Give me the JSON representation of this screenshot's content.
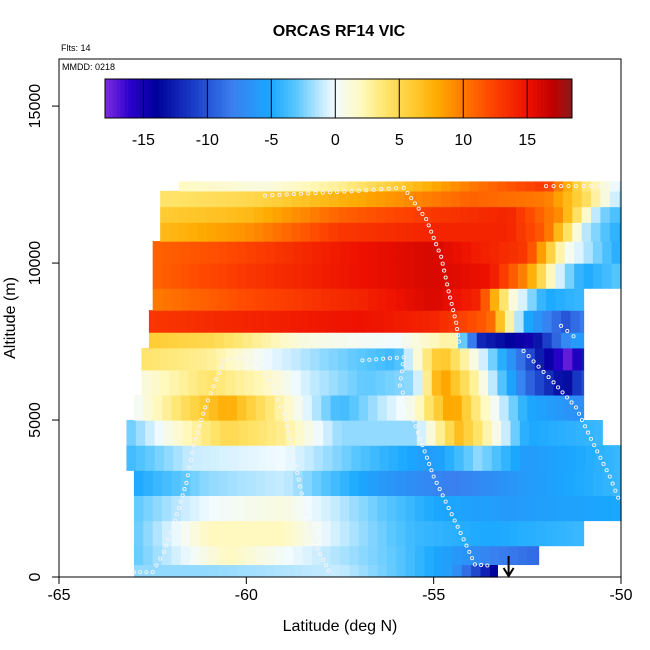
{
  "chart_data": {
    "type": "heatmap",
    "title": "ORCAS RF14 VIC",
    "subtitle_flights": "Flts: 14",
    "subtitle_date": "MMDD: 0218",
    "xlabel": "Latitude (deg N)",
    "ylabel": "Altitude (m)",
    "xlim": [
      -65,
      -50
    ],
    "ylim": [
      0,
      16500
    ],
    "x_ticks": [
      -65,
      -60,
      -55,
      -50
    ],
    "y_ticks": [
      0,
      5000,
      10000,
      15000
    ],
    "x_tick_labels": [
      "-65",
      "-60",
      "-55",
      "-50"
    ],
    "y_tick_labels": [
      "0",
      "5000",
      "10000",
      "15000"
    ],
    "colorbar": {
      "range": [
        -18,
        18.5
      ],
      "ticks": [
        -15,
        -10,
        -5,
        0,
        5,
        10,
        15
      ],
      "tick_labels": [
        "-15",
        "-10",
        "-5",
        "0",
        "5",
        "10",
        "15"
      ],
      "stops": [
        {
          "v": -18,
          "c": "#7f2be0"
        },
        {
          "v": -16,
          "c": "#2a00cc"
        },
        {
          "v": -14,
          "c": "#00009a"
        },
        {
          "v": -11,
          "c": "#1b3fc8"
        },
        {
          "v": -8,
          "c": "#3a7ff0"
        },
        {
          "v": -5,
          "c": "#1aa8ff"
        },
        {
          "v": -3,
          "c": "#5cc8ff"
        },
        {
          "v": -1,
          "c": "#c8ecff"
        },
        {
          "v": 0,
          "c": "#f2fbff"
        },
        {
          "v": 2,
          "c": "#fff9c0"
        },
        {
          "v": 4,
          "c": "#ffe46a"
        },
        {
          "v": 6,
          "c": "#ffcc33"
        },
        {
          "v": 8,
          "c": "#ffaa00"
        },
        {
          "v": 10,
          "c": "#ff7a00"
        },
        {
          "v": 12,
          "c": "#ff4a00"
        },
        {
          "v": 15,
          "c": "#ee1100"
        },
        {
          "v": 17,
          "c": "#c00000"
        },
        {
          "v": 18.5,
          "c": "#8c1a1a"
        }
      ]
    },
    "grid": false,
    "annotation_arrow_lat": -53.0,
    "layers": [
      {
        "y0": 0,
        "y1": 400,
        "x0": -63.0,
        "x1": -53.3,
        "anchors": [
          [
            -63,
            -2
          ],
          [
            -61,
            -2
          ],
          [
            -57.5,
            -1
          ],
          [
            -56,
            -3
          ],
          [
            -54.5,
            -6
          ],
          [
            -53.4,
            -14
          ]
        ]
      },
      {
        "y0": 400,
        "y1": 1000,
        "x0": -63.0,
        "x1": -52.2,
        "anchors": [
          [
            -63,
            -3
          ],
          [
            -60.5,
            2
          ],
          [
            -58,
            -1
          ],
          [
            -56,
            -3
          ],
          [
            -54.5,
            -6
          ],
          [
            -53.3,
            -8
          ],
          [
            -52.2,
            -9
          ]
        ]
      },
      {
        "y0": 1000,
        "y1": 1800,
        "x0": -63.0,
        "x1": -51.0,
        "anchors": [
          [
            -63,
            -3
          ],
          [
            -61,
            2
          ],
          [
            -59,
            2
          ],
          [
            -57.5,
            -1
          ],
          [
            -55.5,
            -4
          ],
          [
            -53.5,
            -5
          ],
          [
            -51,
            -4
          ]
        ]
      },
      {
        "y0": 1800,
        "y1": 2600,
        "x0": -63.0,
        "x1": -50.0,
        "anchors": [
          [
            -63,
            -3
          ],
          [
            -61,
            0
          ],
          [
            -59,
            1
          ],
          [
            -57,
            -2
          ],
          [
            -55,
            -5
          ],
          [
            -53,
            -6
          ],
          [
            -50,
            -5
          ]
        ]
      },
      {
        "y0": 2600,
        "y1": 3400,
        "x0": -63.0,
        "x1": -50.0,
        "anchors": [
          [
            -63,
            -5
          ],
          [
            -61,
            -2
          ],
          [
            -59,
            -1
          ],
          [
            -56.5,
            -6
          ],
          [
            -54.5,
            -8
          ],
          [
            -52.5,
            -6
          ],
          [
            -50,
            -4
          ]
        ]
      },
      {
        "y0": 3400,
        "y1": 4200,
        "x0": -63.2,
        "x1": -50.0,
        "anchors": [
          [
            -63.2,
            -4
          ],
          [
            -61.5,
            -1
          ],
          [
            -59,
            0
          ],
          [
            -56.5,
            -4
          ],
          [
            -55,
            -6
          ],
          [
            -53.8,
            -2
          ],
          [
            -52.5,
            -6
          ],
          [
            -50,
            -4
          ]
        ]
      },
      {
        "y0": 4200,
        "y1": 5000,
        "x0": -63.2,
        "x1": -50.5,
        "anchors": [
          [
            -63.2,
            -3
          ],
          [
            -62,
            1
          ],
          [
            -60.5,
            5
          ],
          [
            -59,
            3
          ],
          [
            -57.5,
            -2
          ],
          [
            -55.5,
            -2
          ],
          [
            -54.3,
            7
          ],
          [
            -53.5,
            2
          ],
          [
            -52.5,
            -5
          ],
          [
            -50.5,
            -4
          ]
        ]
      },
      {
        "y0": 5000,
        "y1": 5800,
        "x0": -63.0,
        "x1": -51.0,
        "anchors": [
          [
            -63,
            0
          ],
          [
            -61.5,
            5
          ],
          [
            -60.5,
            8
          ],
          [
            -59.2,
            3
          ],
          [
            -57.5,
            -4
          ],
          [
            -55.5,
            1
          ],
          [
            -54.5,
            9
          ],
          [
            -53.8,
            3
          ],
          [
            -52.5,
            -5
          ],
          [
            -51,
            -7
          ]
        ]
      },
      {
        "y0": 5800,
        "y1": 6600,
        "x0": -62.8,
        "x1": -51.0,
        "anchors": [
          [
            -62.8,
            1
          ],
          [
            -61,
            4
          ],
          [
            -59.5,
            2
          ],
          [
            -58.3,
            -1
          ],
          [
            -56.8,
            -3
          ],
          [
            -55.5,
            -2
          ],
          [
            -54.8,
            9
          ],
          [
            -53.8,
            2
          ],
          [
            -52.5,
            -9
          ],
          [
            -51.5,
            -14
          ],
          [
            -51,
            -10
          ]
        ]
      },
      {
        "y0": 6600,
        "y1": 7300,
        "x0": -62.8,
        "x1": -51.0,
        "anchors": [
          [
            -62.8,
            4
          ],
          [
            -61,
            3
          ],
          [
            -59.5,
            0
          ],
          [
            -58,
            -2
          ],
          [
            -56,
            -4
          ],
          [
            -54.8,
            7
          ],
          [
            -53.5,
            -2
          ],
          [
            -52,
            -14
          ],
          [
            -51.3,
            -18
          ],
          [
            -51,
            -12
          ]
        ]
      },
      {
        "y0": 7300,
        "y1": 7800,
        "x0": -62.6,
        "x1": -51.0,
        "anchors": [
          [
            -62.6,
            6
          ],
          [
            -61,
            5
          ],
          [
            -58.5,
            1
          ],
          [
            -56,
            0
          ],
          [
            -54.5,
            3
          ],
          [
            -53.8,
            -12
          ],
          [
            -52.5,
            -15
          ],
          [
            -51.3,
            -6
          ]
        ]
      },
      {
        "y0": 7800,
        "y1": 8500,
        "x0": -62.6,
        "x1": -51.0,
        "anchors": [
          [
            -62.6,
            13
          ],
          [
            -60,
            14
          ],
          [
            -57,
            15
          ],
          [
            -55,
            14
          ],
          [
            -53.5,
            11
          ],
          [
            -52.5,
            -5
          ],
          [
            -51.5,
            -10
          ],
          [
            -51,
            -8
          ]
        ]
      },
      {
        "y0": 8500,
        "y1": 9200,
        "x0": -62.5,
        "x1": -51.0,
        "anchors": [
          [
            -62.5,
            10
          ],
          [
            -60,
            12
          ],
          [
            -57,
            14
          ],
          [
            -55,
            16
          ],
          [
            -53.8,
            14
          ],
          [
            -53,
            2
          ],
          [
            -52,
            -5
          ],
          [
            -51,
            -4
          ]
        ]
      },
      {
        "y0": 9200,
        "y1": 10000,
        "x0": -62.5,
        "x1": -50.0,
        "anchors": [
          [
            -62.5,
            11
          ],
          [
            -60,
            13
          ],
          [
            -57,
            15
          ],
          [
            -55,
            16
          ],
          [
            -53.5,
            15
          ],
          [
            -52.5,
            9
          ],
          [
            -51.6,
            -1
          ],
          [
            -51,
            -5
          ],
          [
            -50,
            -3
          ]
        ]
      },
      {
        "y0": 10000,
        "y1": 10700,
        "x0": -62.5,
        "x1": -50.0,
        "anchors": [
          [
            -62.5,
            11
          ],
          [
            -60.5,
            12
          ],
          [
            -57,
            15
          ],
          [
            -55,
            16
          ],
          [
            -53.5,
            14
          ],
          [
            -52.5,
            13
          ],
          [
            -51.5,
            1
          ],
          [
            -50.5,
            -3
          ],
          [
            -50,
            -5
          ]
        ]
      },
      {
        "y0": 10700,
        "y1": 11300,
        "x0": -62.3,
        "x1": -50.0,
        "anchors": [
          [
            -62.3,
            7
          ],
          [
            -60,
            9
          ],
          [
            -57.5,
            13
          ],
          [
            -55,
            14
          ],
          [
            -53,
            14
          ],
          [
            -52,
            11
          ],
          [
            -51,
            -1
          ],
          [
            -50,
            -5
          ]
        ]
      },
      {
        "y0": 11300,
        "y1": 11800,
        "x0": -62.3,
        "x1": -50.0,
        "anchors": [
          [
            -62.3,
            6
          ],
          [
            -60,
            7
          ],
          [
            -57.5,
            11
          ],
          [
            -55,
            13
          ],
          [
            -53,
            14
          ],
          [
            -51.6,
            9
          ],
          [
            -50.6,
            -2
          ],
          [
            -50,
            -4
          ]
        ]
      },
      {
        "y0": 11800,
        "y1": 12300,
        "x0": -62.3,
        "x1": -50.0,
        "anchors": [
          [
            -62.3,
            4
          ],
          [
            -60,
            5
          ],
          [
            -58,
            7
          ],
          [
            -56,
            9
          ],
          [
            -54,
            11
          ],
          [
            -52,
            10
          ],
          [
            -51,
            5
          ],
          [
            -50,
            -2
          ]
        ]
      },
      {
        "y0": 12300,
        "y1": 12600,
        "x0": -61.8,
        "x1": -50.0,
        "anchors": [
          [
            -61.8,
            2
          ],
          [
            -59.5,
            1
          ],
          [
            -57.5,
            3
          ],
          [
            -55.5,
            7
          ],
          [
            -54,
            10
          ],
          [
            -52,
            13
          ],
          [
            -51,
            4
          ],
          [
            -50,
            -1
          ]
        ]
      }
    ],
    "flight_track": [
      [
        -63.0,
        150
      ],
      [
        -62.5,
        150
      ],
      [
        -62.2,
        800
      ],
      [
        -61.9,
        1800
      ],
      [
        -61.6,
        3000
      ],
      [
        -61.4,
        4200
      ],
      [
        -61.1,
        5400
      ],
      [
        -60.8,
        6300
      ],
      [
        -60.6,
        6900
      ],
      [
        -60.2,
        7000
      ],
      [
        -59.7,
        6800
      ],
      [
        -59.3,
        6100
      ],
      [
        -59.0,
        5200
      ],
      [
        -58.8,
        4200
      ],
      [
        -58.6,
        3100
      ],
      [
        -58.4,
        2000
      ],
      [
        -58.1,
        900
      ],
      [
        -57.8,
        200
      ],
      [
        -57.6,
        250
      ]
    ],
    "flight_track_2": [
      [
        -59.5,
        12150
      ],
      [
        -57,
        12300
      ],
      [
        -55.8,
        12400
      ],
      [
        -55.2,
        11400
      ],
      [
        -54.8,
        10200
      ],
      [
        -54.6,
        9100
      ],
      [
        -54.4,
        8100
      ],
      [
        -54.3,
        7300
      ]
    ],
    "flight_track_3": [
      [
        -56.9,
        6900
      ],
      [
        -55.8,
        7000
      ],
      [
        -55.9,
        6100
      ],
      [
        -55.6,
        5200
      ],
      [
        -55.3,
        4200
      ],
      [
        -55.0,
        3200
      ],
      [
        -54.6,
        2200
      ],
      [
        -54.2,
        1200
      ],
      [
        -53.9,
        400
      ],
      [
        -53.4,
        350
      ]
    ],
    "flight_track_4": [
      [
        -52.0,
        12450
      ],
      [
        -51.2,
        12450
      ],
      [
        -50.0,
        12450
      ],
      [
        -52.6,
        7200
      ],
      [
        -51.8,
        6200
      ],
      [
        -51.2,
        5400
      ],
      [
        -50.8,
        4400
      ],
      [
        -50.3,
        3200
      ],
      [
        -50.0,
        2300
      ],
      [
        -51.6,
        8000
      ],
      [
        -51.1,
        7500
      ]
    ]
  }
}
